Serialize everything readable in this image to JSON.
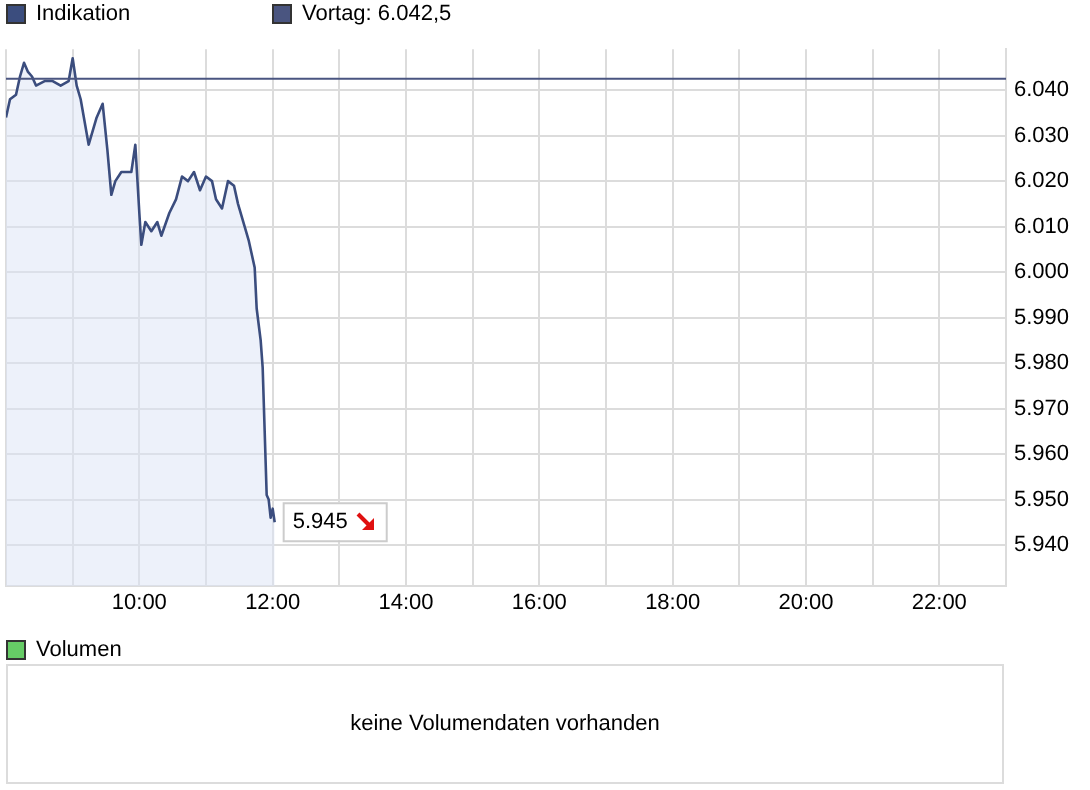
{
  "chart_data": [
    {
      "type": "area",
      "x": [
        8.0,
        8.06,
        8.15,
        8.21,
        8.27,
        8.33,
        8.39,
        8.45,
        8.58,
        8.7,
        8.82,
        8.94,
        9.0,
        9.06,
        9.12,
        9.18,
        9.24,
        9.36,
        9.45,
        9.52,
        9.58,
        9.64,
        9.73,
        9.88,
        9.94,
        10.0,
        10.03,
        10.09,
        10.18,
        10.27,
        10.33,
        10.45,
        10.55,
        10.64,
        10.73,
        10.82,
        10.91,
        11.0,
        11.09,
        11.15,
        11.24,
        11.33,
        11.42,
        11.48,
        11.58,
        11.64,
        11.73,
        11.76,
        11.82,
        11.85,
        11.88,
        11.91,
        11.94,
        11.97,
        12.0,
        12.03
      ],
      "series": [
        {
          "name": "Indikation",
          "color": "#3b4d7e",
          "values": [
            6034,
            6038,
            6039,
            6043,
            6046,
            6044,
            6043,
            6041,
            6042,
            6042,
            6041,
            6042,
            6047,
            6041,
            6038,
            6033,
            6028,
            6034,
            6037,
            6027,
            6017,
            6020,
            6022,
            6022,
            6028,
            6013,
            6006,
            6011,
            6009,
            6011,
            6008,
            6013,
            6016,
            6021,
            6020,
            6022,
            6018,
            6021,
            6020,
            6016,
            6014,
            6020,
            6019,
            6015,
            6010,
            6007,
            6001,
            5992,
            5985,
            5979,
            5965,
            5951,
            5950,
            5946,
            5948,
            5945
          ]
        }
      ],
      "xlim": [
        8,
        23
      ],
      "xticks": [
        {
          "value": 8,
          "label": null
        },
        {
          "value": 9,
          "label": null
        },
        {
          "value": 10,
          "label": "10:00"
        },
        {
          "value": 11,
          "label": null
        },
        {
          "value": 12,
          "label": "12:00"
        },
        {
          "value": 13,
          "label": null
        },
        {
          "value": 14,
          "label": "14:00"
        },
        {
          "value": 15,
          "label": null
        },
        {
          "value": 16,
          "label": "16:00"
        },
        {
          "value": 17,
          "label": null
        },
        {
          "value": 18,
          "label": "18:00"
        },
        {
          "value": 19,
          "label": null
        },
        {
          "value": 20,
          "label": "20:00"
        },
        {
          "value": 21,
          "label": null
        },
        {
          "value": 22,
          "label": "22:00"
        },
        {
          "value": 23,
          "label": null
        }
      ],
      "ylim": [
        5931,
        6049
      ],
      "yticks": [
        {
          "value": 5940,
          "label": "5.940"
        },
        {
          "value": 5950,
          "label": "5.950"
        },
        {
          "value": 5960,
          "label": "5.960"
        },
        {
          "value": 5970,
          "label": "5.970"
        },
        {
          "value": 5980,
          "label": "5.980"
        },
        {
          "value": 5990,
          "label": "5.990"
        },
        {
          "value": 6000,
          "label": "6.000"
        },
        {
          "value": 6010,
          "label": "6.010"
        },
        {
          "value": 6020,
          "label": "6.020"
        },
        {
          "value": 6030,
          "label": "6.030"
        },
        {
          "value": 6040,
          "label": "6.040"
        }
      ],
      "ref_lines": [
        {
          "axis": "y",
          "value": 6042.5,
          "label": "Vortag: 6.042,5",
          "color": "#4a5580"
        }
      ],
      "annotations": [
        {
          "text": "5.945",
          "x": 12.03,
          "y": 5945
        }
      ],
      "grid": true,
      "legend": "top left",
      "marker": "none"
    },
    {
      "type": "other",
      "legend": "top left",
      "series": [
        {
          "name": "Volumen",
          "color": "#66cc66"
        }
      ],
      "annotations": [
        "keine Volumendaten vorhanden"
      ]
    }
  ]
}
